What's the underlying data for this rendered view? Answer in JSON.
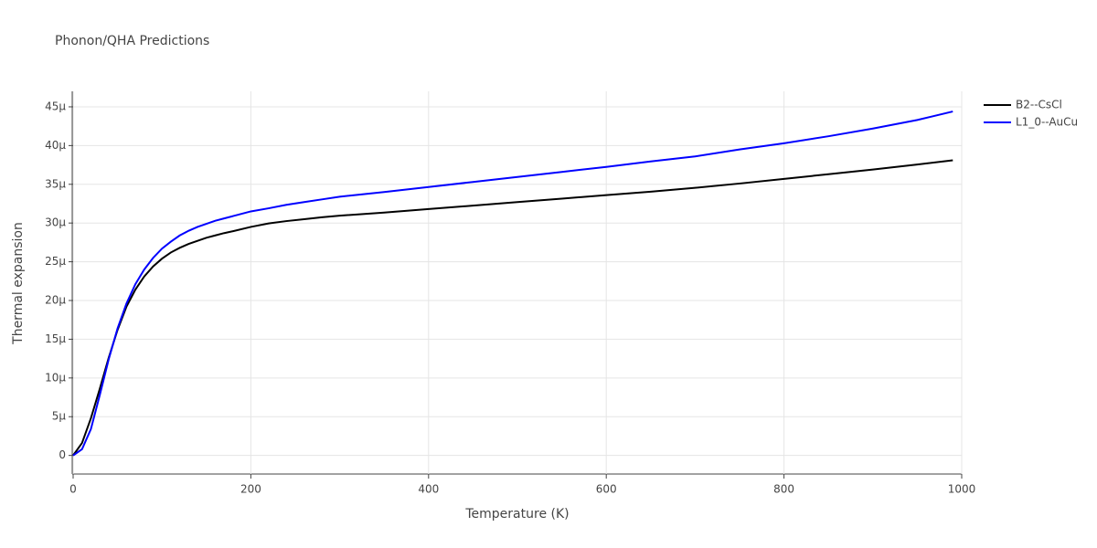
{
  "chart_data": {
    "type": "line",
    "title": "Phonon/QHA Predictions",
    "x_label": "Temperature (K)",
    "y_label": "Thermal expansion",
    "x": [
      0,
      10,
      20,
      30,
      40,
      50,
      60,
      70,
      80,
      90,
      100,
      110,
      120,
      130,
      140,
      150,
      160,
      170,
      180,
      200,
      220,
      240,
      260,
      280,
      300,
      350,
      400,
      450,
      500,
      550,
      600,
      650,
      700,
      750,
      800,
      850,
      900,
      950,
      990
    ],
    "series": [
      {
        "name": "B2--CsCl",
        "color": "#000000",
        "values": [
          0,
          1.6e-06,
          4.8e-06,
          8.6e-06,
          1.26e-05,
          1.62e-05,
          1.92e-05,
          2.14e-05,
          2.31e-05,
          2.44e-05,
          2.54e-05,
          2.62e-05,
          2.68e-05,
          2.73e-05,
          2.77e-05,
          2.81e-05,
          2.84e-05,
          2.87e-05,
          2.895e-05,
          2.95e-05,
          2.995e-05,
          3.025e-05,
          3.05e-05,
          3.075e-05,
          3.095e-05,
          3.135e-05,
          3.18e-05,
          3.225e-05,
          3.27e-05,
          3.315e-05,
          3.36e-05,
          3.405e-05,
          3.455e-05,
          3.51e-05,
          3.57e-05,
          3.63e-05,
          3.69e-05,
          3.755e-05,
          3.81e-05
        ]
      },
      {
        "name": "L1_0--AuCu",
        "color": "#0000ff",
        "values": [
          0,
          8e-07,
          3.4e-06,
          7.8e-06,
          1.24e-05,
          1.64e-05,
          1.96e-05,
          2.21e-05,
          2.4e-05,
          2.55e-05,
          2.67e-05,
          2.76e-05,
          2.84e-05,
          2.9e-05,
          2.95e-05,
          2.99e-05,
          3.03e-05,
          3.06e-05,
          3.09e-05,
          3.15e-05,
          3.19e-05,
          3.235e-05,
          3.27e-05,
          3.305e-05,
          3.34e-05,
          3.4e-05,
          3.465e-05,
          3.53e-05,
          3.595e-05,
          3.66e-05,
          3.725e-05,
          3.795e-05,
          3.86e-05,
          3.95e-05,
          4.03e-05,
          4.12e-05,
          4.22e-05,
          4.33e-05,
          4.44e-05
        ]
      }
    ],
    "xlim": [
      0,
      1000
    ],
    "xticks": [
      0,
      200,
      400,
      600,
      800,
      1000
    ],
    "ylim": [
      -2.4e-06,
      4.7e-05
    ],
    "yticks": [
      0,
      {
        "value": 5e-06,
        "label": "5µ"
      },
      {
        "value": 1e-05,
        "label": "10µ"
      },
      {
        "value": 1.5e-05,
        "label": "15µ"
      },
      {
        "value": 2e-05,
        "label": "20µ"
      },
      {
        "value": 2.5e-05,
        "label": "25µ"
      },
      {
        "value": 3e-05,
        "label": "30µ"
      },
      {
        "value": 3.5e-05,
        "label": "35µ"
      },
      {
        "value": 4e-05,
        "label": "40µ"
      },
      {
        "value": 4.5e-05,
        "label": "45µ"
      }
    ],
    "grid": true,
    "legend": "top-right"
  }
}
